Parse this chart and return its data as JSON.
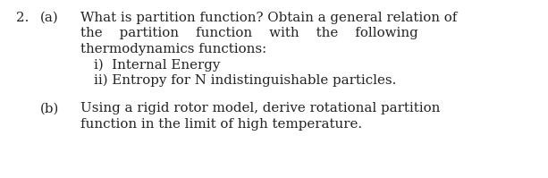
{
  "background_color": "#ffffff",
  "text_color": "#222222",
  "question_number": "2.",
  "part_a_label": "(a)",
  "part_a_line1": "What is partition function? Obtain a general relation of",
  "part_a_line2": "the    partition    function    with    the    following",
  "part_a_line3": "thermodynamics functions:",
  "part_a_line4": "i)  Internal Energy",
  "part_a_line5": "ii) Entropy for N indistinguishable particles.",
  "part_b_label": "(b)",
  "part_b_line1": "Using a rigid rotor model, derive rotational partition",
  "part_b_line2": "function in the limit of high temperature.",
  "font_size": 10.8,
  "font_family": "DejaVu Serif",
  "fig_width": 6.13,
  "fig_height": 1.99,
  "dpi": 100
}
